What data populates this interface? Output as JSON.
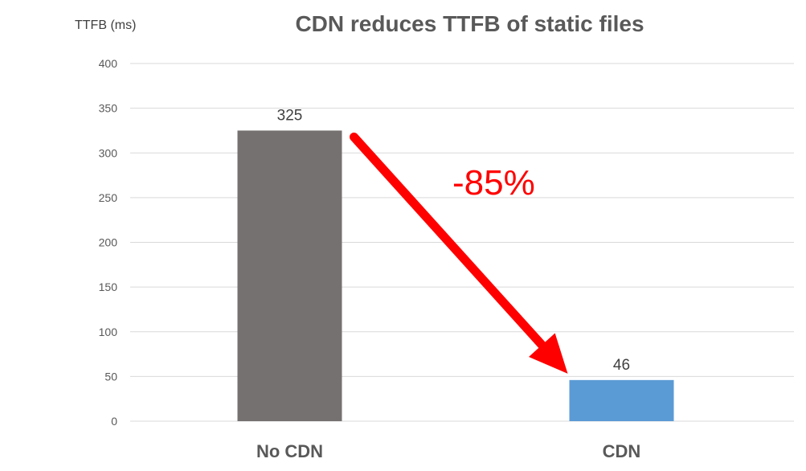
{
  "chart_data": {
    "type": "bar",
    "title": "CDN reduces TTFB of static files",
    "ylabel": "TTFB (ms)",
    "xlabel": "",
    "categories": [
      "No CDN",
      "CDN"
    ],
    "values": [
      325,
      46
    ],
    "data_labels": [
      "325",
      "46"
    ],
    "bar_colors": [
      "#757170",
      "#5b9bd5"
    ],
    "ylim": [
      0,
      400
    ],
    "yticks": [
      0,
      50,
      100,
      150,
      200,
      250,
      300,
      350,
      400
    ],
    "grid": true,
    "legend": "none",
    "annotation": {
      "text": "-85%",
      "color": "#ff0000",
      "arrow": "from No CDN bar top to CDN bar top"
    }
  }
}
